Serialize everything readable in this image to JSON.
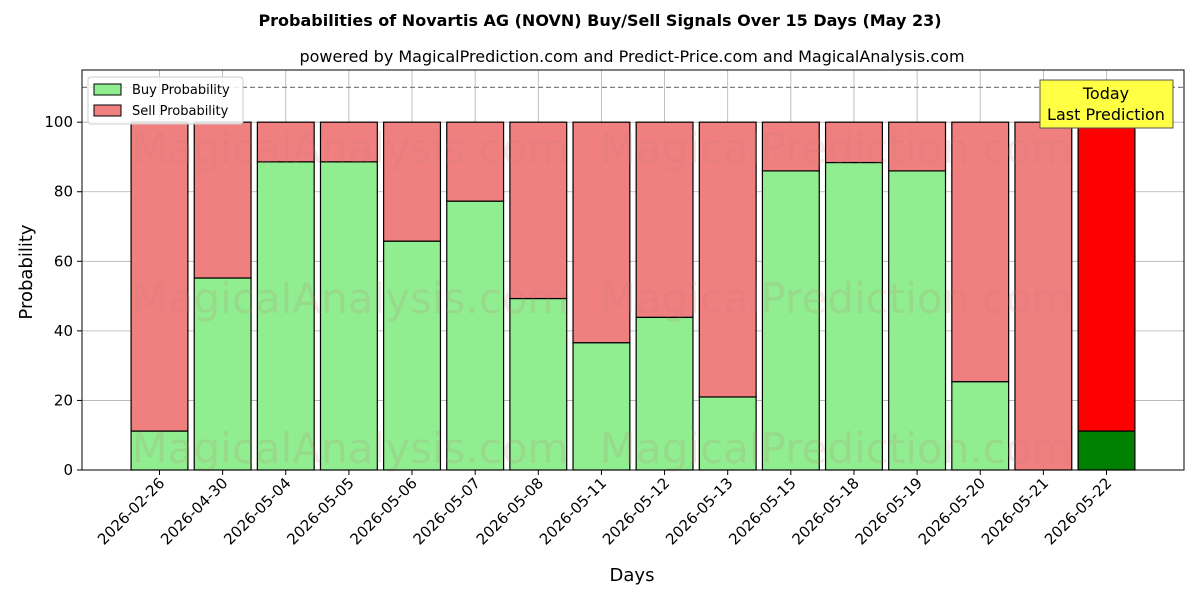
{
  "chart_data": {
    "type": "bar",
    "stacked": true,
    "title": "Probabilities of Novartis AG (NOVN) Buy/Sell Signals Over 15 Days (May 23)",
    "subtitle": "powered by MagicalPrediction.com and Predict-Price.com and MagicalAnalysis.com",
    "xlabel": "Days",
    "ylabel": "Probability",
    "ylim": [
      0,
      115
    ],
    "yticks": [
      0,
      20,
      40,
      60,
      80,
      100
    ],
    "grid": true,
    "legend_position": "top-left",
    "reference_line": 110,
    "categories": [
      "2026-02-26",
      "2026-04-30",
      "2026-05-04",
      "2026-05-05",
      "2026-05-06",
      "2026-05-07",
      "2026-05-08",
      "2026-05-11",
      "2026-05-12",
      "2026-05-13",
      "2026-05-15",
      "2026-05-18",
      "2026-05-19",
      "2026-05-20",
      "2026-05-21",
      "2026-05-22"
    ],
    "series": [
      {
        "name": "Buy Probability",
        "color": "#90ee90",
        "values": [
          11.2,
          55.2,
          88.6,
          88.6,
          65.8,
          77.3,
          49.3,
          36.6,
          43.9,
          21.0,
          86.0,
          88.4,
          86.0,
          25.4,
          0.0,
          11.2
        ]
      },
      {
        "name": "Sell Probability",
        "color": "#f08080",
        "values": [
          88.8,
          44.8,
          11.4,
          11.4,
          34.2,
          22.7,
          50.7,
          63.4,
          56.1,
          79.0,
          14.0,
          11.6,
          14.0,
          74.6,
          100.0,
          88.8
        ]
      }
    ],
    "highlight_last": {
      "buy_color": "#008000",
      "sell_color": "#ff0000"
    },
    "annotation": {
      "line1": "Today",
      "line2": "Last Prediction",
      "bg": "#ffff44"
    },
    "watermarks": [
      "MagicalAnalysis.com",
      "MagicalPrediction.com"
    ]
  }
}
